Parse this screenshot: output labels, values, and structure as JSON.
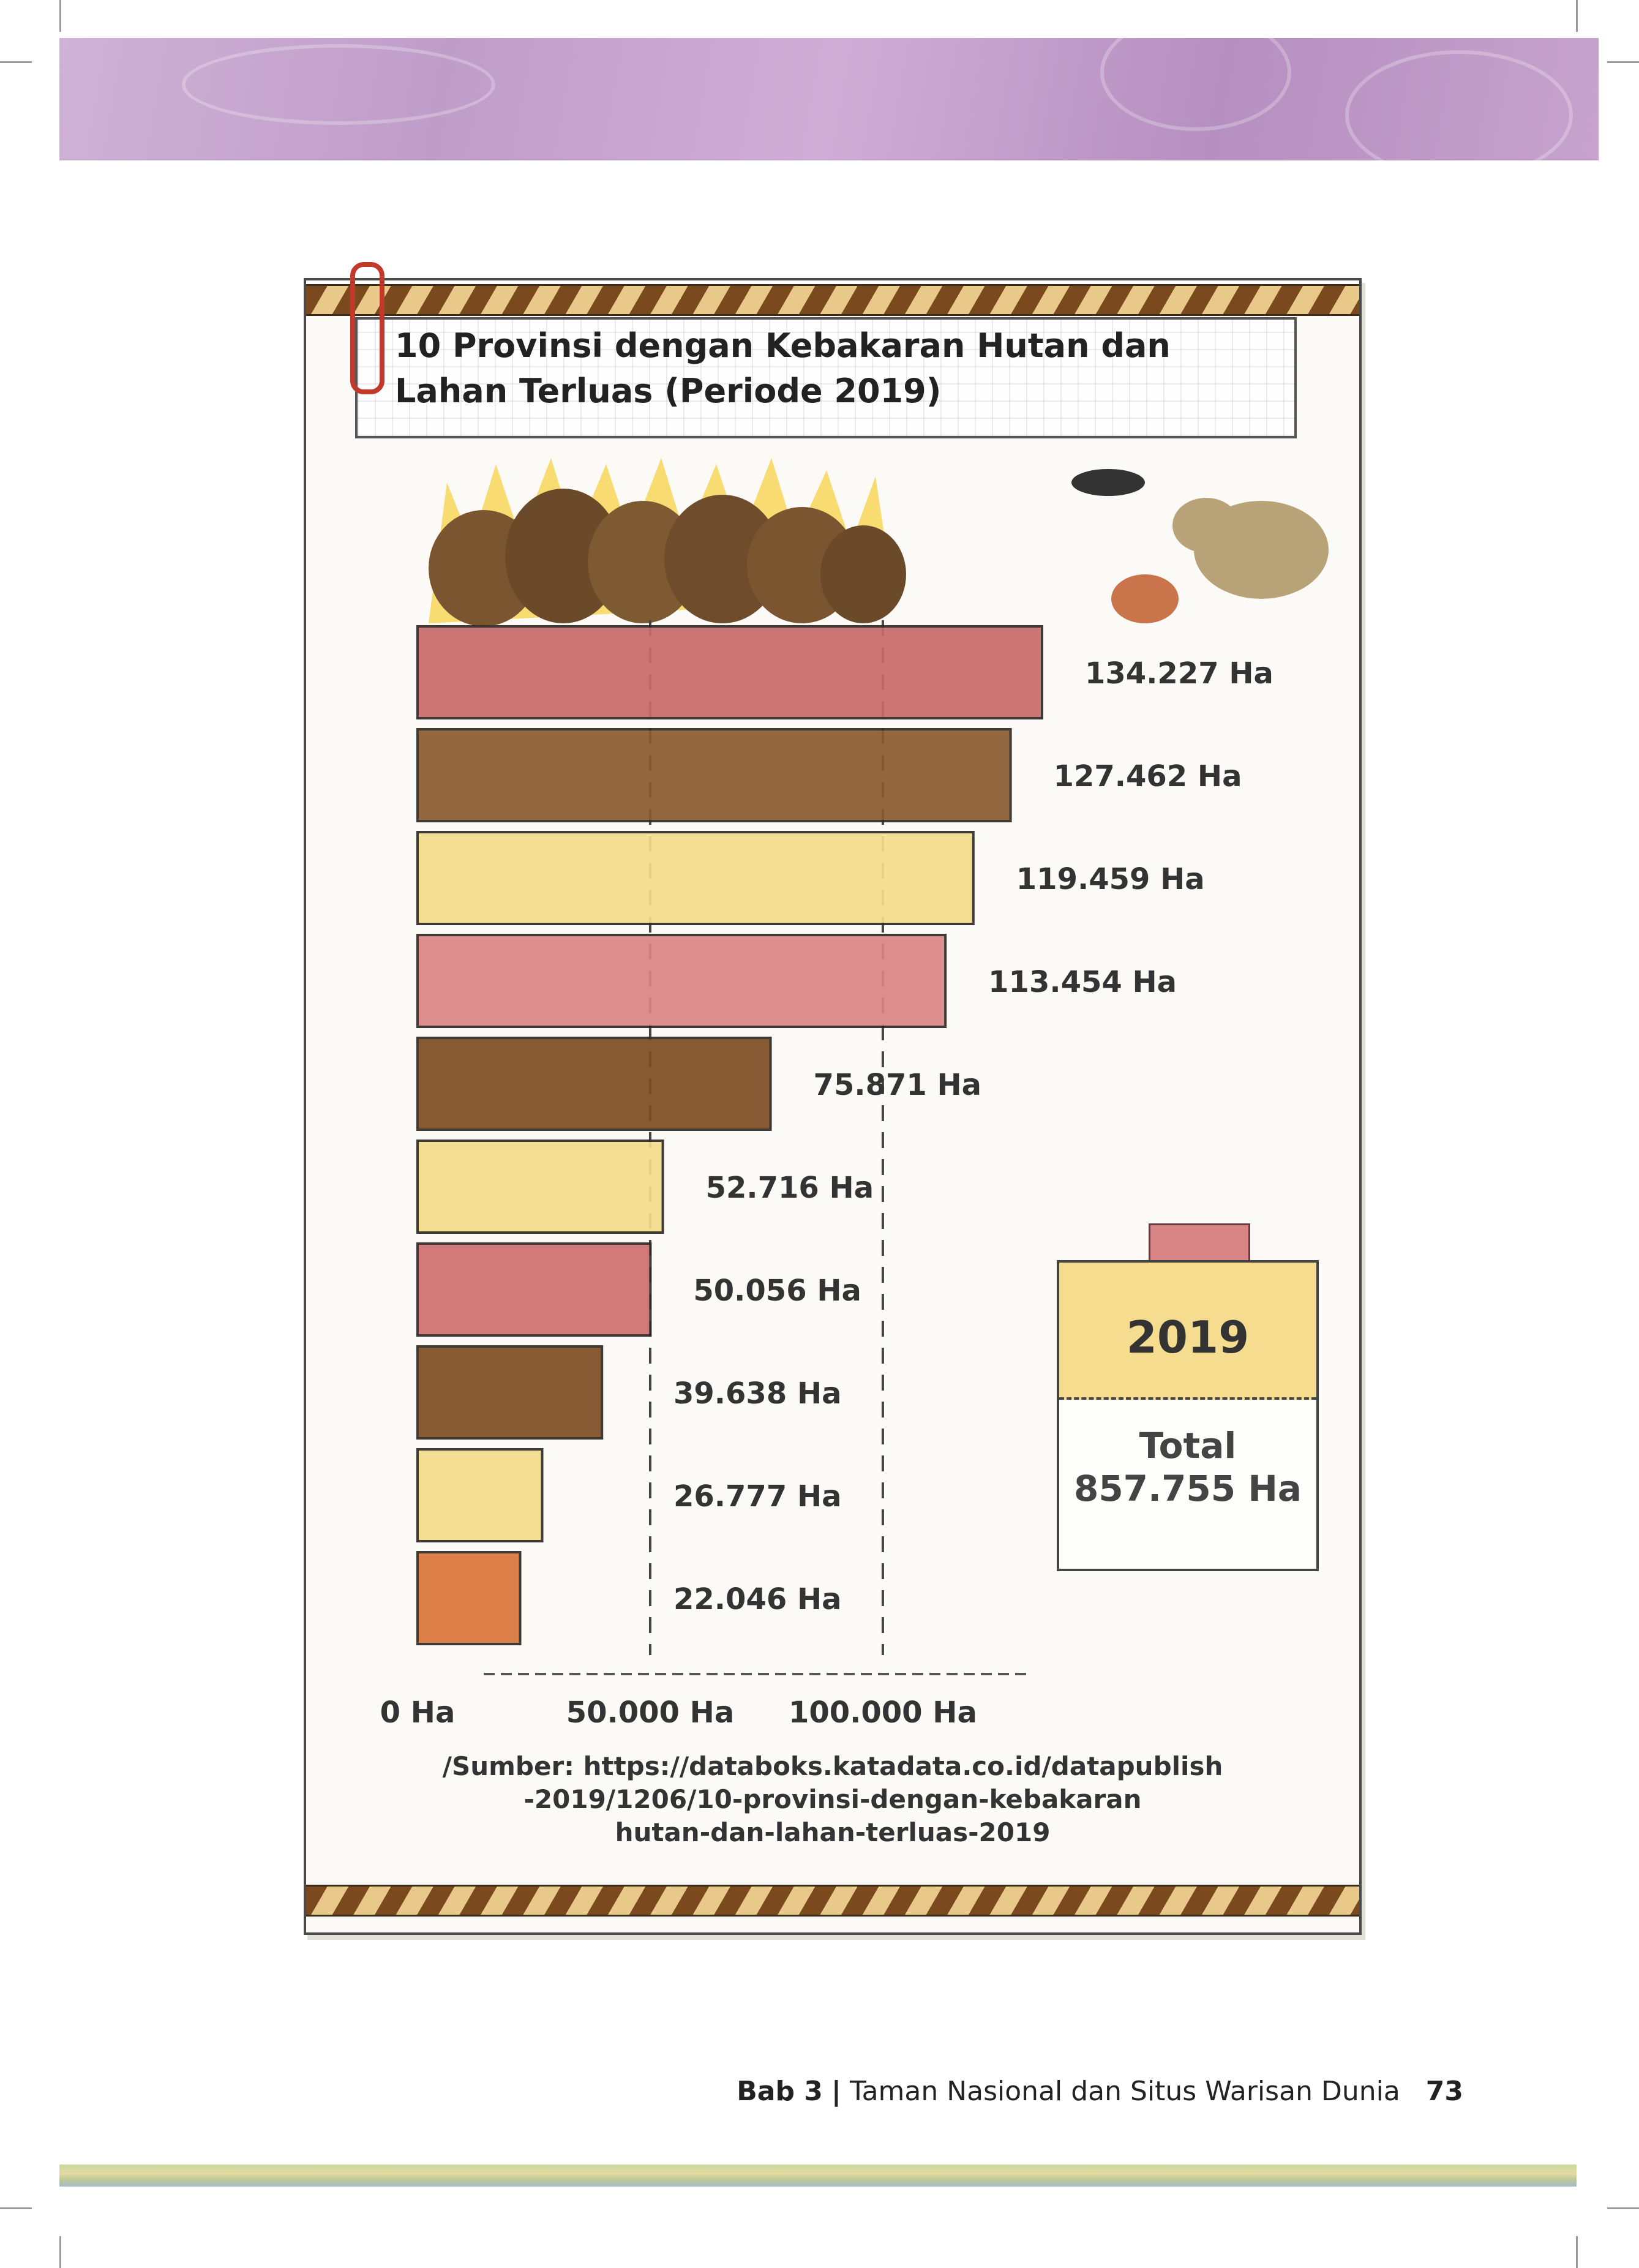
{
  "chart_data": {
    "type": "bar",
    "orientation": "horizontal",
    "title": "10 Provinsi dengan Kebakaran Hutan dan\nLahan  Terluas (Periode 2019)",
    "values": [
      134227,
      127462,
      119459,
      113454,
      75871,
      52716,
      50056,
      39638,
      26777,
      22046
    ],
    "value_labels": [
      "134.227 Ha",
      "127.462 Ha",
      "119.459 Ha",
      "113.454 Ha",
      "75.871 Ha",
      "52.716 Ha",
      "50.056 Ha",
      "39.638 Ha",
      "26.777 Ha",
      "22.046 Ha"
    ],
    "bar_colors": [
      "#c96a6a",
      "#8a5a30",
      "#f3dc8c",
      "#d98585",
      "#7e4d24",
      "#f3dc8c",
      "#cf7070",
      "#7e4d24",
      "#f3dc8c",
      "#d9743a"
    ],
    "xlim": [
      0,
      134227
    ],
    "x_ticks": [
      0,
      50000,
      100000
    ],
    "x_tick_labels": [
      "0 Ha",
      "50.000 Ha",
      "100.000 Ha"
    ],
    "gridlines": [
      50000,
      100000
    ],
    "xlabel": "",
    "ylabel": ""
  },
  "note": {
    "year": "2019",
    "total_label": "Total",
    "total_value": "857.755 Ha"
  },
  "source": "/Sumber: https://databoks.katadata.co.id/datapublish\n-2019/1206/10-provinsi-dengan-kebakaran\nhutan-dan-lahan-terluas-2019",
  "footer": {
    "chapter": "Bab 3",
    "separator": "|",
    "chapter_title": "Taman Nasional dan Situs Warisan Dunia",
    "page_number": "73"
  }
}
